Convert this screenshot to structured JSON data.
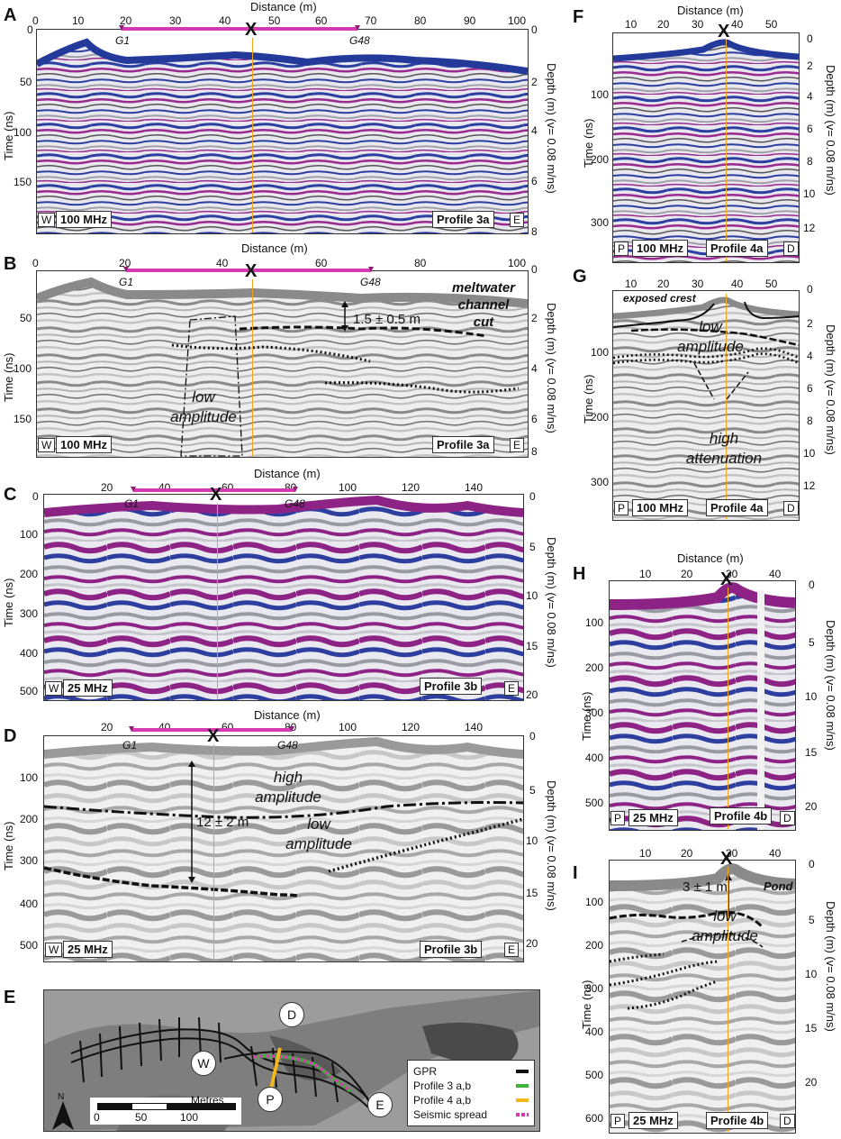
{
  "panels": {
    "A": {
      "letter": "A",
      "x_title": "Distance (m)",
      "x_ticks": [
        "0",
        "10",
        "20",
        "30",
        "40",
        "50",
        "60",
        "70",
        "80",
        "90",
        "100"
      ],
      "y_left_title": "Time (ns)",
      "y_left_ticks": [
        "0",
        "50",
        "100",
        "150"
      ],
      "y_right_title": "Depth (m) (v= 0.08 m/ns)",
      "y_right_ticks": [
        "0",
        "2",
        "4",
        "6",
        "8"
      ],
      "freq": "100 MHz",
      "profile": "Profile 3a",
      "left_dir": "W",
      "right_dir": "E",
      "g1": "G1",
      "g48": "G48",
      "x": "X"
    },
    "B": {
      "letter": "B",
      "x_title": "Distance (m)",
      "x_ticks": [
        "0",
        "20",
        "40",
        "60",
        "80",
        "100"
      ],
      "y_left_title": "Time (ns)",
      "y_left_ticks": [
        "50",
        "100",
        "150"
      ],
      "y_right_title": "Depth (m) (v= 0.08 m/ns)",
      "y_right_ticks": [
        "0",
        "2",
        "4",
        "6",
        "8"
      ],
      "freq": "100 MHz",
      "profile": "Profile 3a",
      "left_dir": "W",
      "right_dir": "E",
      "g1": "G1",
      "g48": "G48",
      "x": "X",
      "annot_channel": "meltwater channel cut",
      "annot_thickness": "1.5 ± 0.5 m",
      "annot_low": "low amplitude"
    },
    "C": {
      "letter": "C",
      "x_title": "Distance (m)",
      "x_ticks": [
        "20",
        "40",
        "60",
        "80",
        "100",
        "120",
        "140"
      ],
      "y_left_title": "Time (ns)",
      "y_left_ticks": [
        "0",
        "100",
        "200",
        "300",
        "400",
        "500"
      ],
      "y_right_title": "Depth (m) (v= 0.08 m/ns)",
      "y_right_ticks": [
        "0",
        "5",
        "10",
        "15",
        "20"
      ],
      "freq": "25 MHz",
      "profile": "Profile 3b",
      "left_dir": "W",
      "right_dir": "E",
      "g1": "G1",
      "g48": "G48",
      "x": "X"
    },
    "D": {
      "letter": "D",
      "x_title": "Distance (m)",
      "x_ticks": [
        "20",
        "40",
        "60",
        "80",
        "100",
        "120",
        "140"
      ],
      "y_left_title": "Time (ns)",
      "y_left_ticks": [
        "100",
        "200",
        "300",
        "400",
        "500"
      ],
      "y_right_title": "Depth (m) (v= 0.08 m/ns)",
      "y_right_ticks": [
        "0",
        "5",
        "10",
        "15",
        "20"
      ],
      "freq": "25 MHz",
      "profile": "Profile 3b",
      "left_dir": "W",
      "right_dir": "E",
      "g1": "G1",
      "g48": "G48",
      "x": "X",
      "annot_high": "high amplitude",
      "annot_low": "low amplitude",
      "annot_thickness": "12 ± 2 m"
    },
    "E": {
      "letter": "E",
      "north": "N",
      "scale_label": "Metres",
      "scale_ticks": [
        "0",
        "50",
        "100"
      ],
      "sites": [
        "D",
        "W",
        "P",
        "E"
      ],
      "legend": [
        {
          "label": "GPR",
          "color": "#111111"
        },
        {
          "label": "Profile 3 a,b",
          "color": "#3fb23a"
        },
        {
          "label": "Profile 4 a,b",
          "color": "#f2b81c"
        },
        {
          "label": "Seismic spread",
          "color": "#d63ab0"
        }
      ]
    },
    "F": {
      "letter": "F",
      "x_title": "Distance (m)",
      "x_ticks": [
        "10",
        "20",
        "30",
        "40",
        "50"
      ],
      "y_left_title": "Time (ns)",
      "y_left_ticks": [
        "100",
        "200",
        "300"
      ],
      "y_right_title": "Depth (m) (v= 0.08 m/ns)",
      "y_right_ticks": [
        "0",
        "2",
        "4",
        "6",
        "8",
        "10",
        "12"
      ],
      "freq": "100 MHz",
      "profile": "Profile 4a",
      "left_dir": "P",
      "right_dir": "D",
      "x": "X"
    },
    "G": {
      "letter": "G",
      "x_ticks": [
        "10",
        "20",
        "30",
        "40",
        "50"
      ],
      "y_left_title": "Time (ns)",
      "y_left_ticks": [
        "100",
        "200",
        "300"
      ],
      "y_right_title": "Depth (m) (v= 0.08 m/ns)",
      "y_right_ticks": [
        "0",
        "2",
        "4",
        "6",
        "8",
        "10",
        "12"
      ],
      "freq": "100 MHz",
      "profile": "Profile 4a",
      "left_dir": "P",
      "right_dir": "D",
      "annot_crest": "exposed crest",
      "annot_low": "low amplitude",
      "annot_high": "high attenuation"
    },
    "H": {
      "letter": "H",
      "x_title": "Distance (m)",
      "x_ticks": [
        "10",
        "20",
        "30",
        "40"
      ],
      "y_left_title": "Time (ns)",
      "y_left_ticks": [
        "100",
        "200",
        "300",
        "400",
        "500"
      ],
      "y_right_title": "Depth (m) (v= 0.08 m/ns)",
      "y_right_ticks": [
        "0",
        "5",
        "10",
        "15",
        "20"
      ],
      "freq": "25 MHz",
      "profile": "Profile 4b",
      "left_dir": "P",
      "right_dir": "D",
      "x": "X"
    },
    "I": {
      "letter": "I",
      "x_ticks": [
        "10",
        "20",
        "30",
        "40"
      ],
      "y_left_title": "Time (ns)",
      "y_left_ticks": [
        "100",
        "200",
        "300",
        "400",
        "500",
        "600"
      ],
      "y_right_title": "Depth (m) (v= 0.08 m/ns)",
      "y_right_ticks": [
        "0",
        "5",
        "10",
        "15",
        "20"
      ],
      "freq": "25 MHz",
      "profile": "Profile 4b",
      "left_dir": "P",
      "right_dir": "D",
      "x": "X",
      "annot_thickness": "3 ± 1 m",
      "annot_pond": "Pond",
      "annot_low": "low amplitude"
    }
  }
}
